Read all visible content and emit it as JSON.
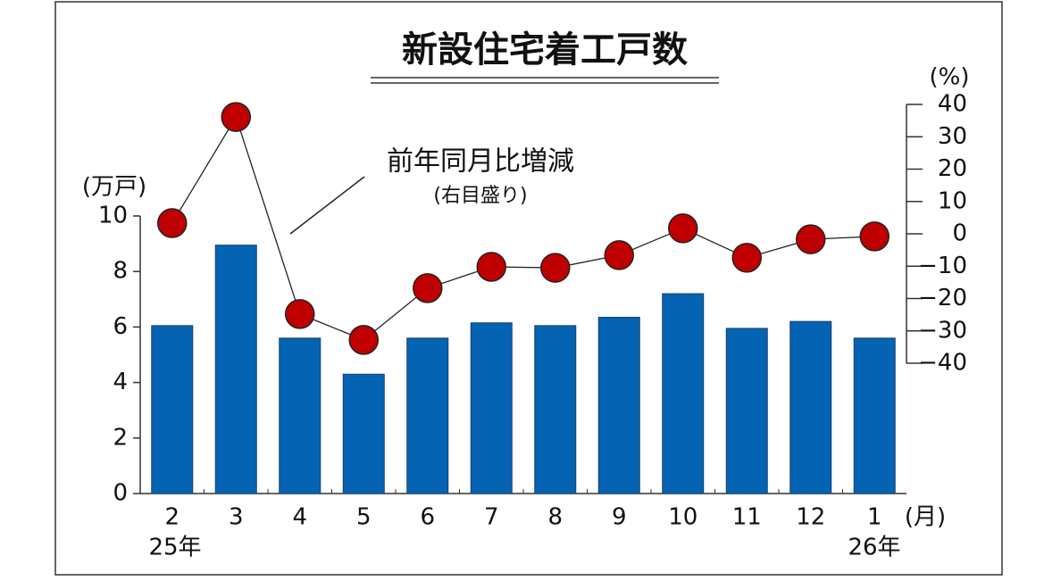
{
  "chart_data": {
    "type": "bar_line",
    "title": "新設住宅着工戸数",
    "y_unit": "(万戸)",
    "y2_unit": "(%)",
    "x_unit": "(月)",
    "start_year_label": "25年",
    "end_year_label": "26年",
    "annotation": "(右目盛り)",
    "categories": [
      "2",
      "3",
      "4",
      "5",
      "6",
      "7",
      "8",
      "9",
      "10",
      "11",
      "12",
      "1"
    ],
    "series": [
      {
        "type": "bar",
        "color": "#0563b4",
        "values": [
          6.05,
          8.95,
          5.6,
          4.3,
          5.6,
          6.15,
          6.05,
          6.35,
          7.2,
          5.95,
          6.2,
          5.6
        ]
      },
      {
        "type": "line",
        "name": "前年同月比増減",
        "axis": "y2",
        "color": "#c00000",
        "values": [
          3.3,
          36.1,
          -24.8,
          -32.8,
          -16.8,
          -10.2,
          -10.5,
          -6.6,
          1.7,
          -7.4,
          -1.7,
          -0.8
        ]
      }
    ],
    "ylim": [
      0,
      10
    ],
    "yticks": [
      0,
      2,
      4,
      6,
      8,
      10
    ],
    "y2lim": [
      -40,
      40
    ],
    "y2ticks": [
      {
        "value": -40,
        "label": "−40"
      },
      {
        "value": -30,
        "label": "−30"
      },
      {
        "value": -20,
        "label": "−20"
      },
      {
        "value": -10,
        "label": "−10"
      },
      0,
      10,
      20,
      30,
      40
    ]
  }
}
